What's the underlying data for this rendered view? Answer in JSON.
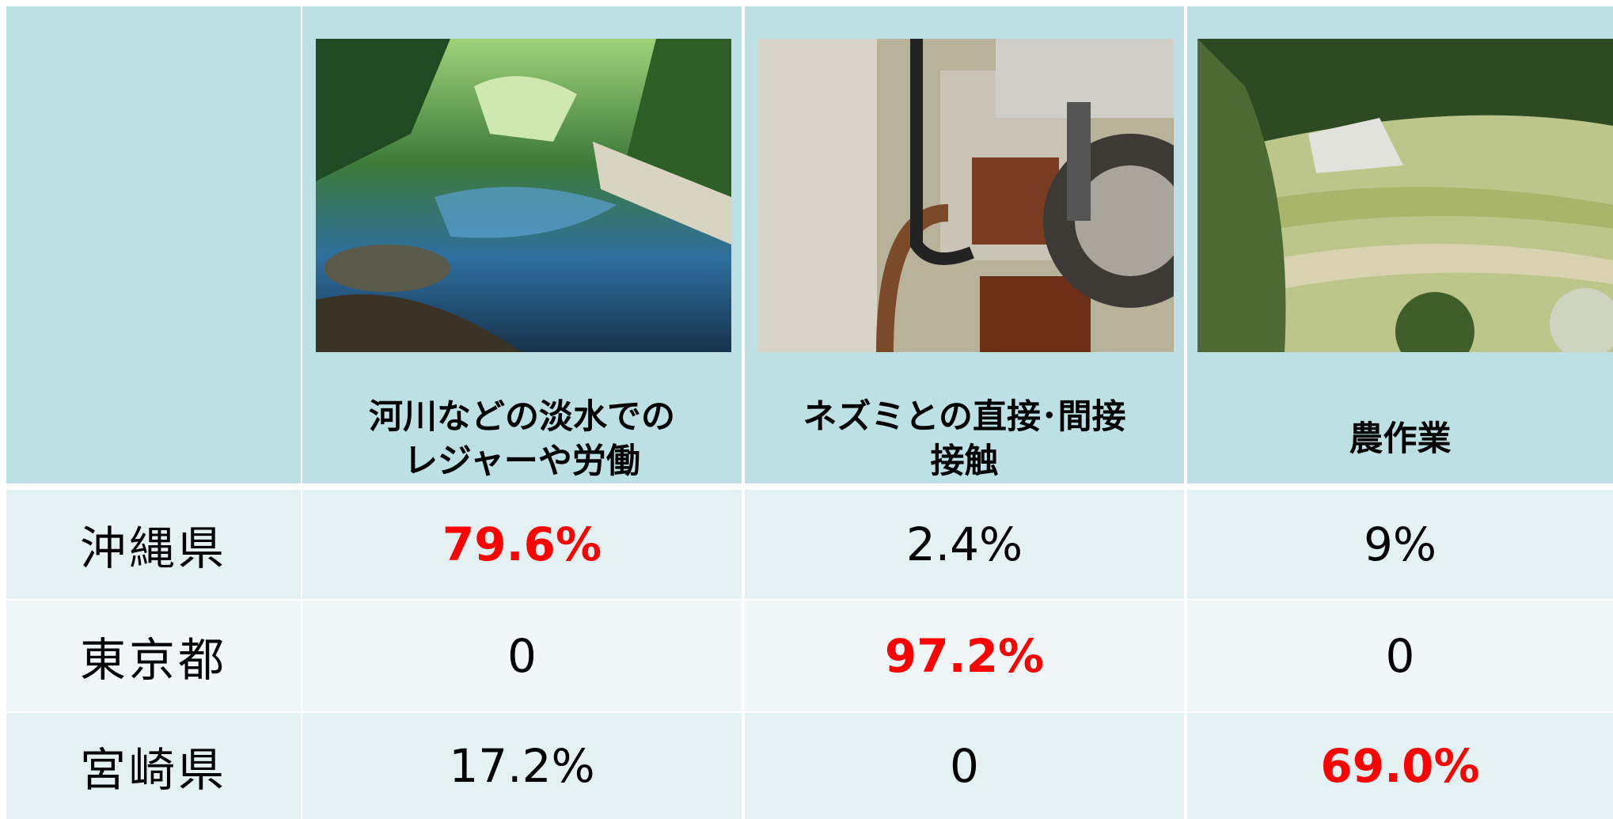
{
  "table": {
    "columns": [
      {
        "lines": [
          "河川などの淡水での",
          "レジャーや労働"
        ]
      },
      {
        "lines": [
          "ネズミとの直接･間接",
          "接触"
        ]
      },
      {
        "lines": [
          "農作業"
        ]
      }
    ],
    "rows": [
      {
        "label": "沖縄県",
        "cells": [
          "79.6%",
          "2.4%",
          "9%"
        ],
        "highlight": 0
      },
      {
        "label": "東京都",
        "cells": [
          "0",
          "97.2%",
          "0"
        ],
        "highlight": 1
      },
      {
        "label": "宮崎県",
        "cells": [
          "17.2%",
          "0",
          "69.0%"
        ],
        "highlight": 2
      }
    ]
  }
}
